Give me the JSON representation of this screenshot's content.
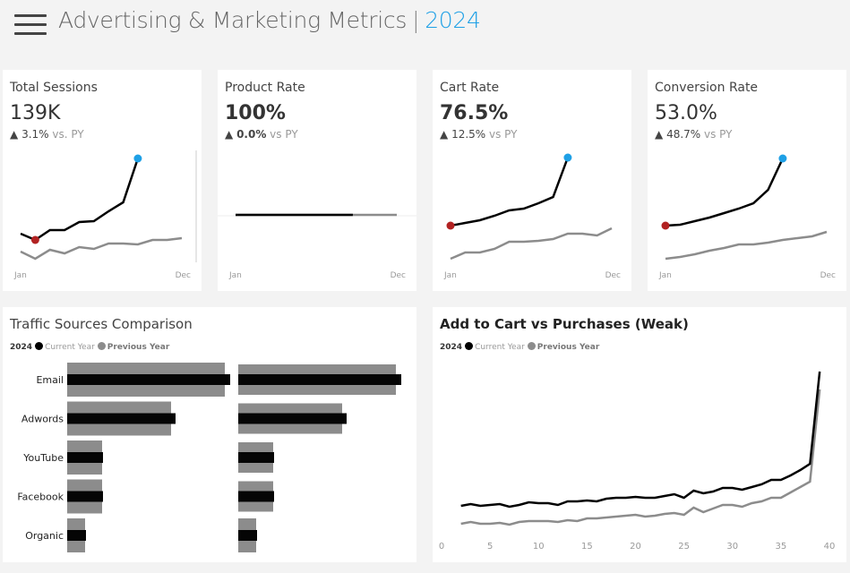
{
  "header": {
    "title": "Advertising & Marketing Metrics",
    "separator": "|",
    "year": "2024",
    "menu_icon": "hamburger-menu-icon"
  },
  "colors": {
    "accent": "#1ea0e6",
    "current": "#000000",
    "previous": "#8c8c8c",
    "low_point": "#b22222",
    "high_point": "#1ea0e6"
  },
  "kpis": [
    {
      "title": "Total Sessions",
      "value": "139K",
      "delta": "3.1%",
      "suffix": "vs. PY",
      "arrow": "up",
      "start": "Jan",
      "end": "Dec",
      "current": [
        39,
        32,
        43,
        43,
        52,
        53,
        64,
        74,
        123
      ],
      "previous": [
        19,
        11,
        21,
        17,
        24,
        22,
        28,
        28,
        27,
        32,
        32,
        34
      ],
      "low_marker": 1
    },
    {
      "title": "Product Rate",
      "value": "100%",
      "delta": "0.0%",
      "suffix": "vs PY",
      "arrow": "up",
      "start": "Jan",
      "end": "Dec",
      "current": [
        60,
        60,
        60,
        60,
        60,
        60,
        60,
        60,
        60
      ],
      "previous": [
        60,
        60,
        60,
        60,
        60,
        60,
        60,
        60,
        60,
        60,
        60,
        60
      ],
      "low_marker": null
    },
    {
      "title": "Cart Rate",
      "value": "76.5%",
      "delta": "12.5%",
      "suffix": "vs PY",
      "arrow": "up",
      "start": "Jan",
      "end": "Dec",
      "current": [
        48,
        51,
        54,
        59,
        65,
        67,
        73,
        80,
        124
      ],
      "previous": [
        11,
        18,
        18,
        22,
        30,
        30,
        31,
        33,
        39,
        39,
        37,
        45
      ],
      "low_marker": 0
    },
    {
      "title": "Conversion Rate",
      "value": "53.0%",
      "delta": "48.7%",
      "suffix": "vs PY",
      "arrow": "up",
      "start": "Jan",
      "end": "Dec",
      "current": [
        48,
        49,
        53,
        57,
        62,
        67,
        73,
        88,
        123
      ],
      "previous": [
        11,
        13,
        16,
        20,
        23,
        27,
        27,
        29,
        32,
        34,
        36,
        41
      ],
      "low_marker": 0
    }
  ],
  "traffic": {
    "title": "Traffic Sources Comparison",
    "legend": {
      "year": "2024",
      "current": "Current Year",
      "previous": "Previous Year"
    },
    "chart_data": {
      "type": "bar",
      "categories": [
        "Email",
        "Adwords",
        "YouTube",
        "Facebook",
        "Organic"
      ],
      "panels": [
        {
          "series": [
            {
              "name": "Current Year",
              "values": [
                182,
                121,
                40,
                40,
                21
              ]
            },
            {
              "name": "Previous Year",
              "values": [
                176,
                116,
                39,
                39,
                20
              ]
            }
          ]
        },
        {
          "series": [
            {
              "name": "Current Year",
              "values": [
                182,
                121,
                40,
                40,
                21
              ]
            },
            {
              "name": "Previous Year",
              "values": [
                176,
                116,
                39,
                39,
                20
              ]
            }
          ]
        }
      ]
    }
  },
  "cart": {
    "title": "Add to Cart vs Purchases (Weak)",
    "legend": {
      "year": "2024",
      "current": "Current Year",
      "previous": "Previous Year"
    },
    "chart_data": {
      "type": "line",
      "xlim": [
        0,
        40
      ],
      "xticks": [
        "0",
        "5",
        "10",
        "15",
        "20",
        "25",
        "30",
        "35",
        "40"
      ],
      "x_start": 2,
      "series": [
        {
          "name": "Current Year",
          "values": [
            35,
            37,
            35,
            36,
            37,
            34,
            36,
            39,
            38,
            38,
            36,
            40,
            40,
            41,
            40,
            43,
            44,
            44,
            45,
            44,
            44,
            46,
            48,
            44,
            52,
            49,
            51,
            55,
            55,
            53,
            56,
            59,
            64,
            64,
            69,
            75,
            82,
            185
          ]
        },
        {
          "name": "Previous Year",
          "values": [
            15,
            17,
            15,
            15,
            16,
            14,
            17,
            18,
            18,
            18,
            17,
            19,
            18,
            21,
            21,
            22,
            23,
            24,
            25,
            23,
            24,
            26,
            27,
            25,
            33,
            28,
            32,
            36,
            36,
            34,
            38,
            40,
            44,
            44,
            50,
            56,
            62,
            165
          ]
        }
      ]
    }
  }
}
